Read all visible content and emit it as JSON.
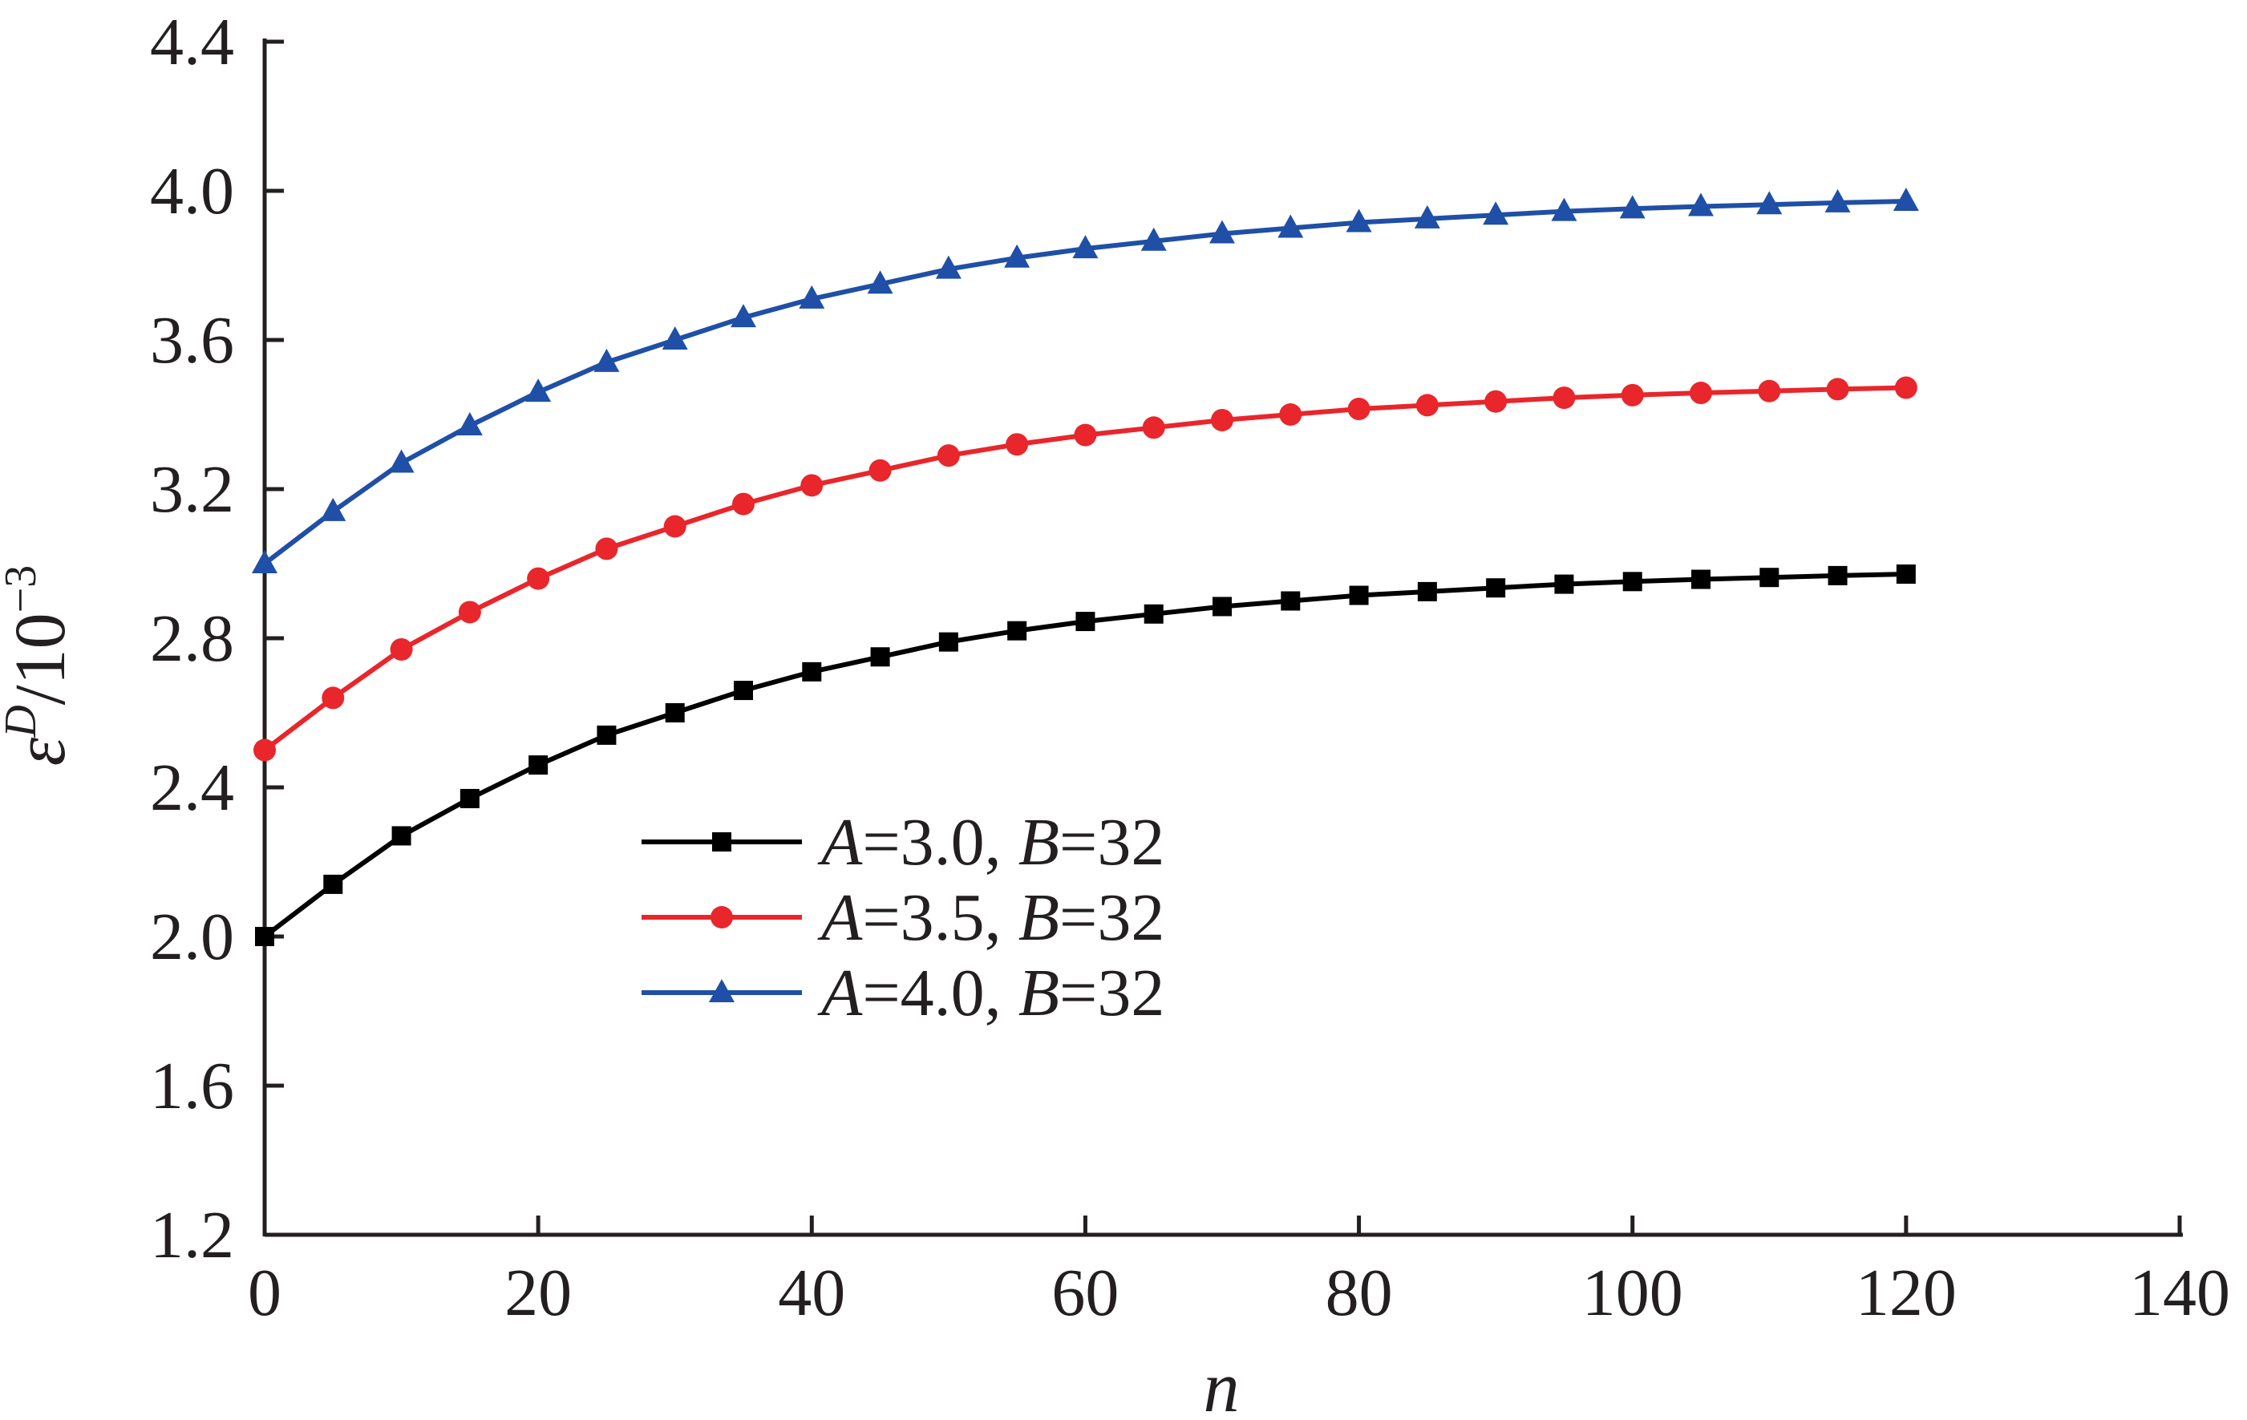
{
  "chart_data": {
    "type": "line",
    "xlabel": "n",
    "ylabel_main": "ε",
    "ylabel_sup": "D",
    "ylabel_rest": "/10",
    "ylabel_exp": "−3",
    "xlim": [
      0,
      140
    ],
    "ylim": [
      1.2,
      4.4
    ],
    "x_ticks": [
      "0",
      "20",
      "40",
      "60",
      "80",
      "100",
      "120",
      "140"
    ],
    "y_ticks": [
      "1.2",
      "1.6",
      "2.0",
      "2.4",
      "2.8",
      "3.2",
      "3.6",
      "4.0",
      "4.4"
    ],
    "grid": false,
    "legend_position": "center",
    "x": [
      0,
      5,
      10,
      15,
      20,
      25,
      30,
      35,
      40,
      45,
      50,
      55,
      60,
      65,
      70,
      75,
      80,
      85,
      90,
      95,
      100,
      105,
      110,
      115,
      120
    ],
    "series": [
      {
        "name": "A=3.0, B=32",
        "legend_a": "A",
        "legend_mid": "=3.0, ",
        "legend_b": "B",
        "legend_end": "=32",
        "color": "#000000",
        "marker": "square",
        "values": [
          2.0,
          2.14,
          2.27,
          2.37,
          2.46,
          2.54,
          2.6,
          2.66,
          2.71,
          2.75,
          2.79,
          2.82,
          2.845,
          2.865,
          2.885,
          2.9,
          2.915,
          2.925,
          2.935,
          2.945,
          2.952,
          2.958,
          2.963,
          2.968,
          2.972
        ]
      },
      {
        "name": "A=3.5, B=32",
        "legend_a": "A",
        "legend_mid": "=3.5, ",
        "legend_b": "B",
        "legend_end": "=32",
        "color": "#e8262b",
        "marker": "circle",
        "values": [
          2.5,
          2.64,
          2.77,
          2.87,
          2.96,
          3.04,
          3.1,
          3.16,
          3.21,
          3.25,
          3.29,
          3.32,
          3.345,
          3.365,
          3.385,
          3.4,
          3.415,
          3.425,
          3.435,
          3.445,
          3.452,
          3.458,
          3.463,
          3.468,
          3.472
        ]
      },
      {
        "name": "A=4.0, B=32",
        "legend_a": "A",
        "legend_mid": "=4.0, ",
        "legend_b": "B",
        "legend_end": "=32",
        "color": "#1f4fa6",
        "marker": "triangle",
        "values": [
          3.0,
          3.14,
          3.27,
          3.37,
          3.46,
          3.54,
          3.6,
          3.66,
          3.71,
          3.75,
          3.79,
          3.82,
          3.845,
          3.865,
          3.885,
          3.9,
          3.915,
          3.925,
          3.935,
          3.945,
          3.952,
          3.958,
          3.963,
          3.968,
          3.972
        ]
      }
    ]
  }
}
